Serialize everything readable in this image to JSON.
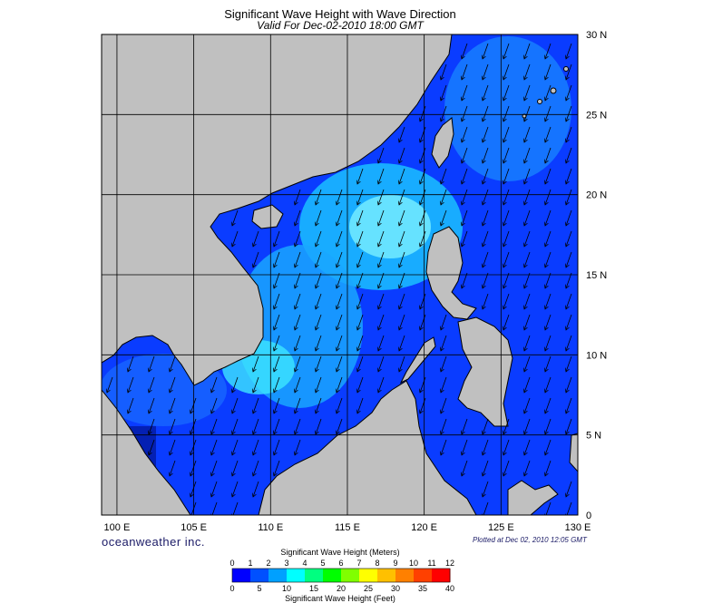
{
  "title": "Significant Wave Height with Wave Direction",
  "subtitle": "Valid For Dec-02-2010 18:00 GMT",
  "brand": "oceanweather inc.",
  "plotted": "Plotted at Dec 02, 2010 12:05 GMT",
  "map": {
    "lon_range": [
      99,
      130
    ],
    "lat_range": [
      0,
      30
    ],
    "lon_ticks": [
      "100 E",
      "105 E",
      "110 E",
      "115 E",
      "120 E",
      "125 E",
      "130 E"
    ],
    "lat_ticks": [
      "30 N",
      "25 N",
      "20 N",
      "15 N",
      "10 N",
      "5 N",
      "0"
    ],
    "land_color": "#c0c0c0",
    "grid": true,
    "wave_direction": "toward south-southwest"
  },
  "colorbar": {
    "meters_label": "Significant Wave Height (Meters)",
    "feet_label": "Significant Wave Height (Feet)",
    "meters_ticks": [
      "0",
      "1",
      "2",
      "3",
      "4",
      "5",
      "6",
      "7",
      "8",
      "9",
      "10",
      "11",
      "12"
    ],
    "feet_ticks": [
      "0",
      "5",
      "10",
      "15",
      "20",
      "25",
      "30",
      "35",
      "40"
    ],
    "colors": [
      "#0000ff",
      "#0050ff",
      "#00a0ff",
      "#00ffff",
      "#00ff80",
      "#00ff00",
      "#80ff00",
      "#ffff00",
      "#ffc000",
      "#ff8000",
      "#ff4000",
      "#ff0000"
    ]
  }
}
